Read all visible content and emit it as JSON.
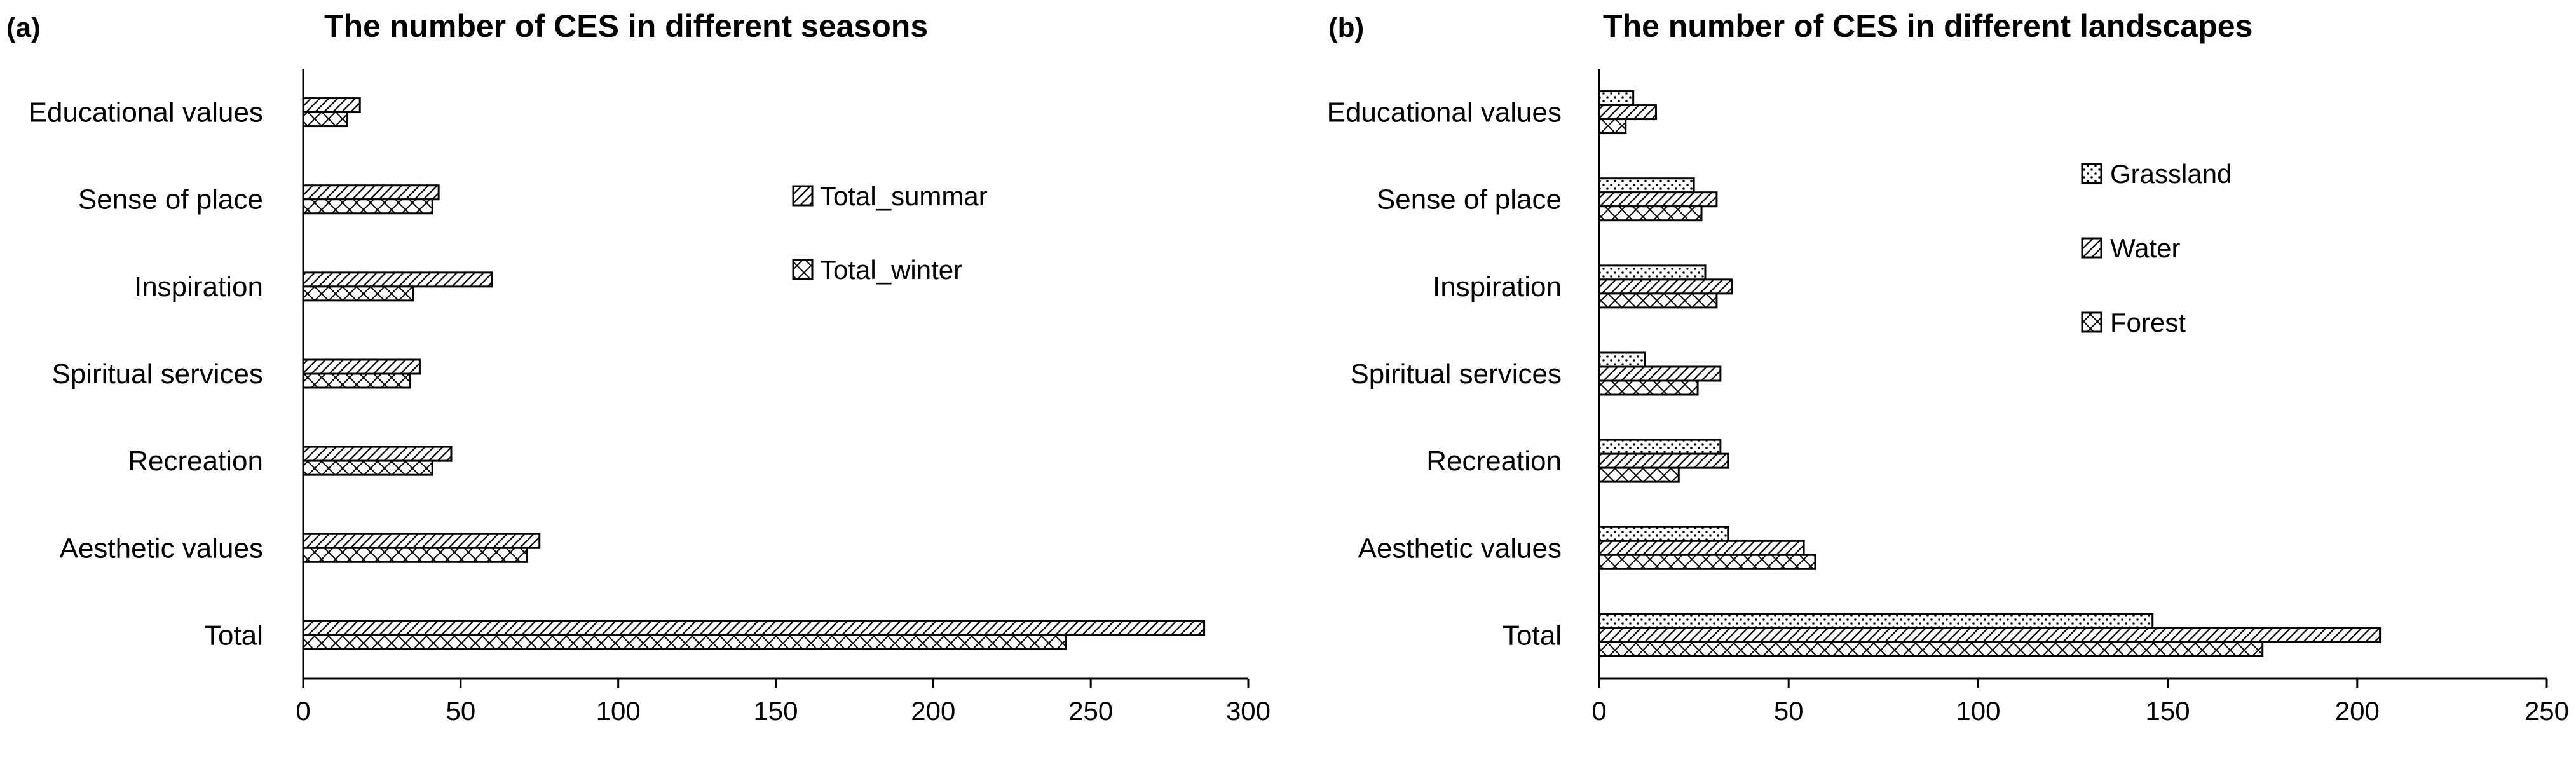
{
  "figure": {
    "panels": [
      {
        "panel_label": "(a)",
        "title": "The number of CES in different seasons",
        "x_ticks": [
          "0",
          "50",
          "100",
          "150",
          "200",
          "250",
          "300"
        ],
        "legend": [
          {
            "label": "Total_summar",
            "pattern": "diag"
          },
          {
            "label": "Total_winter",
            "pattern": "cross"
          }
        ]
      },
      {
        "panel_label": "(b)",
        "title": "The number of CES in different landscapes",
        "x_ticks": [
          "0",
          "50",
          "100",
          "150",
          "200",
          "250"
        ],
        "legend": [
          {
            "label": "Grassland",
            "pattern": "dots"
          },
          {
            "label": "Water",
            "pattern": "diag"
          },
          {
            "label": "Forest",
            "pattern": "cross"
          }
        ]
      }
    ]
  },
  "chart_data": [
    {
      "type": "bar",
      "orientation": "horizontal",
      "panel_label": "(a)",
      "title": "The number of CES in different seasons",
      "categories": [
        "Educational values",
        "Sense of place",
        "Inspiration",
        "Spiritual services",
        "Recreation",
        "Aesthetic values",
        "Total"
      ],
      "series": [
        {
          "name": "Total_summar",
          "values": [
            18,
            43,
            60,
            37,
            47,
            75,
            286
          ]
        },
        {
          "name": "Total_winter",
          "values": [
            14,
            41,
            35,
            34,
            41,
            71,
            242
          ]
        }
      ],
      "xlim": [
        0,
        300
      ],
      "x_ticks": [
        0,
        50,
        100,
        150,
        200,
        250,
        300
      ],
      "grid": false,
      "legend_position": "top-right"
    },
    {
      "type": "bar",
      "orientation": "horizontal",
      "panel_label": "(b)",
      "title": "The number of CES in different landscapes",
      "categories": [
        "Educational values",
        "Sense of place",
        "Inspiration",
        "Spiritual services",
        "Recreation",
        "Aesthetic values",
        "Total"
      ],
      "series": [
        {
          "name": "Grassland",
          "values": [
            9,
            25,
            28,
            12,
            32,
            34,
            146
          ]
        },
        {
          "name": "Water",
          "values": [
            15,
            31,
            35,
            32,
            34,
            54,
            206
          ]
        },
        {
          "name": "Forest",
          "values": [
            7,
            27,
            31,
            26,
            21,
            57,
            175
          ]
        }
      ],
      "xlim": [
        0,
        250
      ],
      "x_ticks": [
        0,
        50,
        100,
        150,
        200,
        250
      ],
      "grid": false,
      "legend_position": "top-right"
    }
  ]
}
